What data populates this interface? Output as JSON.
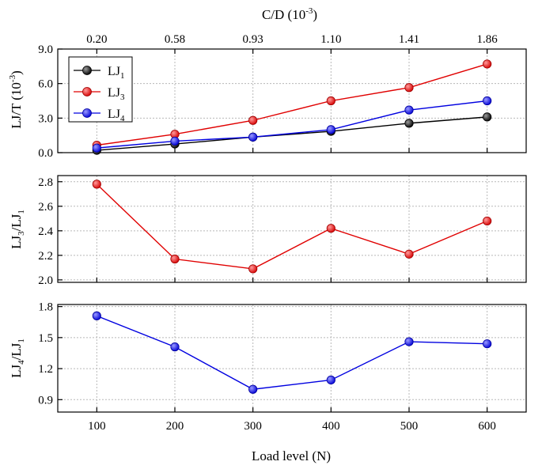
{
  "chart_data": [
    {
      "type": "line",
      "name": "lj-per-t",
      "ylabel": "LJ/T (10",
      "ylabel_sup": "-3",
      "ylabel_end": ")",
      "ylim": [
        0,
        9
      ],
      "yticks": [
        0,
        3,
        6,
        9
      ],
      "ytick_labels": [
        "0.0",
        "3.0",
        "6.0",
        "9.0"
      ],
      "grid": true,
      "top_axis": {
        "label": "C/D (10",
        "label_sup": "-3",
        "label_end": ")",
        "ticks": [
          "0.20",
          "0.58",
          "0.93",
          "1.10",
          "1.41",
          "1.86"
        ]
      },
      "legend": {
        "position": "top-left",
        "entries": [
          {
            "text": "LJ",
            "sub": "1"
          },
          {
            "text": "LJ",
            "sub": "3"
          },
          {
            "text": "LJ",
            "sub": "4"
          }
        ]
      },
      "x": [
        100,
        200,
        300,
        400,
        500,
        600
      ],
      "series": [
        {
          "name": "LJ1",
          "color": "#000000",
          "values": [
            0.2,
            0.75,
            1.35,
            1.85,
            2.55,
            3.1
          ]
        },
        {
          "name": "LJ3",
          "color": "#e00000",
          "values": [
            0.65,
            1.6,
            2.8,
            4.5,
            5.65,
            7.7
          ]
        },
        {
          "name": "LJ4",
          "color": "#0000e0",
          "values": [
            0.4,
            1.0,
            1.35,
            2.0,
            3.7,
            4.5
          ]
        }
      ]
    },
    {
      "type": "line",
      "name": "lj3-over-lj1",
      "ylabel": "LJ",
      "ylabel_sub": "3",
      "ylabel_mid": "/LJ",
      "ylabel_sub2": "1",
      "ylim": [
        1.98,
        2.85
      ],
      "yticks": [
        2.0,
        2.2,
        2.4,
        2.6,
        2.8
      ],
      "ytick_labels": [
        "2.0",
        "2.2",
        "2.4",
        "2.6",
        "2.8"
      ],
      "grid": true,
      "x": [
        100,
        200,
        300,
        400,
        500,
        600
      ],
      "series": [
        {
          "name": "LJ3/LJ1",
          "color": "#e00000",
          "values": [
            2.78,
            2.17,
            2.09,
            2.42,
            2.21,
            2.48
          ]
        }
      ]
    },
    {
      "type": "line",
      "name": "lj4-over-lj1",
      "ylabel": "LJ",
      "ylabel_sub": "4",
      "ylabel_mid": "/LJ",
      "ylabel_sub2": "1",
      "ylim": [
        0.78,
        1.82
      ],
      "yticks": [
        0.9,
        1.2,
        1.5,
        1.8
      ],
      "ytick_labels": [
        "0.9",
        "1.2",
        "1.5",
        "1.8"
      ],
      "grid": true,
      "xticks": [
        100,
        200,
        300,
        400,
        500,
        600
      ],
      "xtick_labels": [
        "100",
        "200",
        "300",
        "400",
        "500",
        "600"
      ],
      "xlabel": "Load level (N)",
      "x": [
        100,
        200,
        300,
        400,
        500,
        600
      ],
      "series": [
        {
          "name": "LJ4/LJ1",
          "color": "#0000e0",
          "values": [
            1.71,
            1.41,
            1.0,
            1.09,
            1.46,
            1.44
          ]
        }
      ]
    }
  ]
}
